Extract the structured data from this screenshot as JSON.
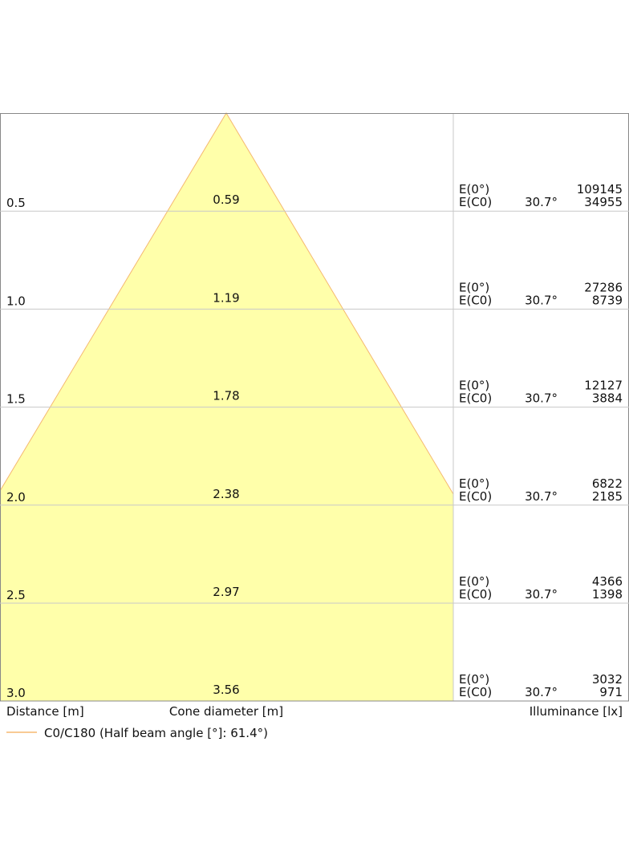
{
  "rows": [
    {
      "distance": "0.5",
      "diameter": "0.59",
      "e0_label": "E(0°)",
      "ec0_label": "E(C0)",
      "angle": "30.7°",
      "e0": "109145",
      "ec0": "34955"
    },
    {
      "distance": "1.0",
      "diameter": "1.19",
      "e0_label": "E(0°)",
      "ec0_label": "E(C0)",
      "angle": "30.7°",
      "e0": "27286",
      "ec0": "8739"
    },
    {
      "distance": "1.5",
      "diameter": "1.78",
      "e0_label": "E(0°)",
      "ec0_label": "E(C0)",
      "angle": "30.7°",
      "e0": "12127",
      "ec0": "3884"
    },
    {
      "distance": "2.0",
      "diameter": "2.38",
      "e0_label": "E(0°)",
      "ec0_label": "E(C0)",
      "angle": "30.7°",
      "e0": "6822",
      "ec0": "2185"
    },
    {
      "distance": "2.5",
      "diameter": "2.97",
      "e0_label": "E(0°)",
      "ec0_label": "E(C0)",
      "angle": "30.7°",
      "e0": "4366",
      "ec0": "1398"
    },
    {
      "distance": "3.0",
      "diameter": "3.56",
      "e0_label": "E(0°)",
      "ec0_label": "E(C0)",
      "angle": "30.7°",
      "e0": "3032",
      "ec0": "971"
    }
  ],
  "labels": {
    "distance": "Distance [m]",
    "cone": "Cone diameter [m]",
    "illuminance": "Illuminance [lx]"
  },
  "legend": "C0/C180 (Half beam angle [°]: 61.4°)"
}
